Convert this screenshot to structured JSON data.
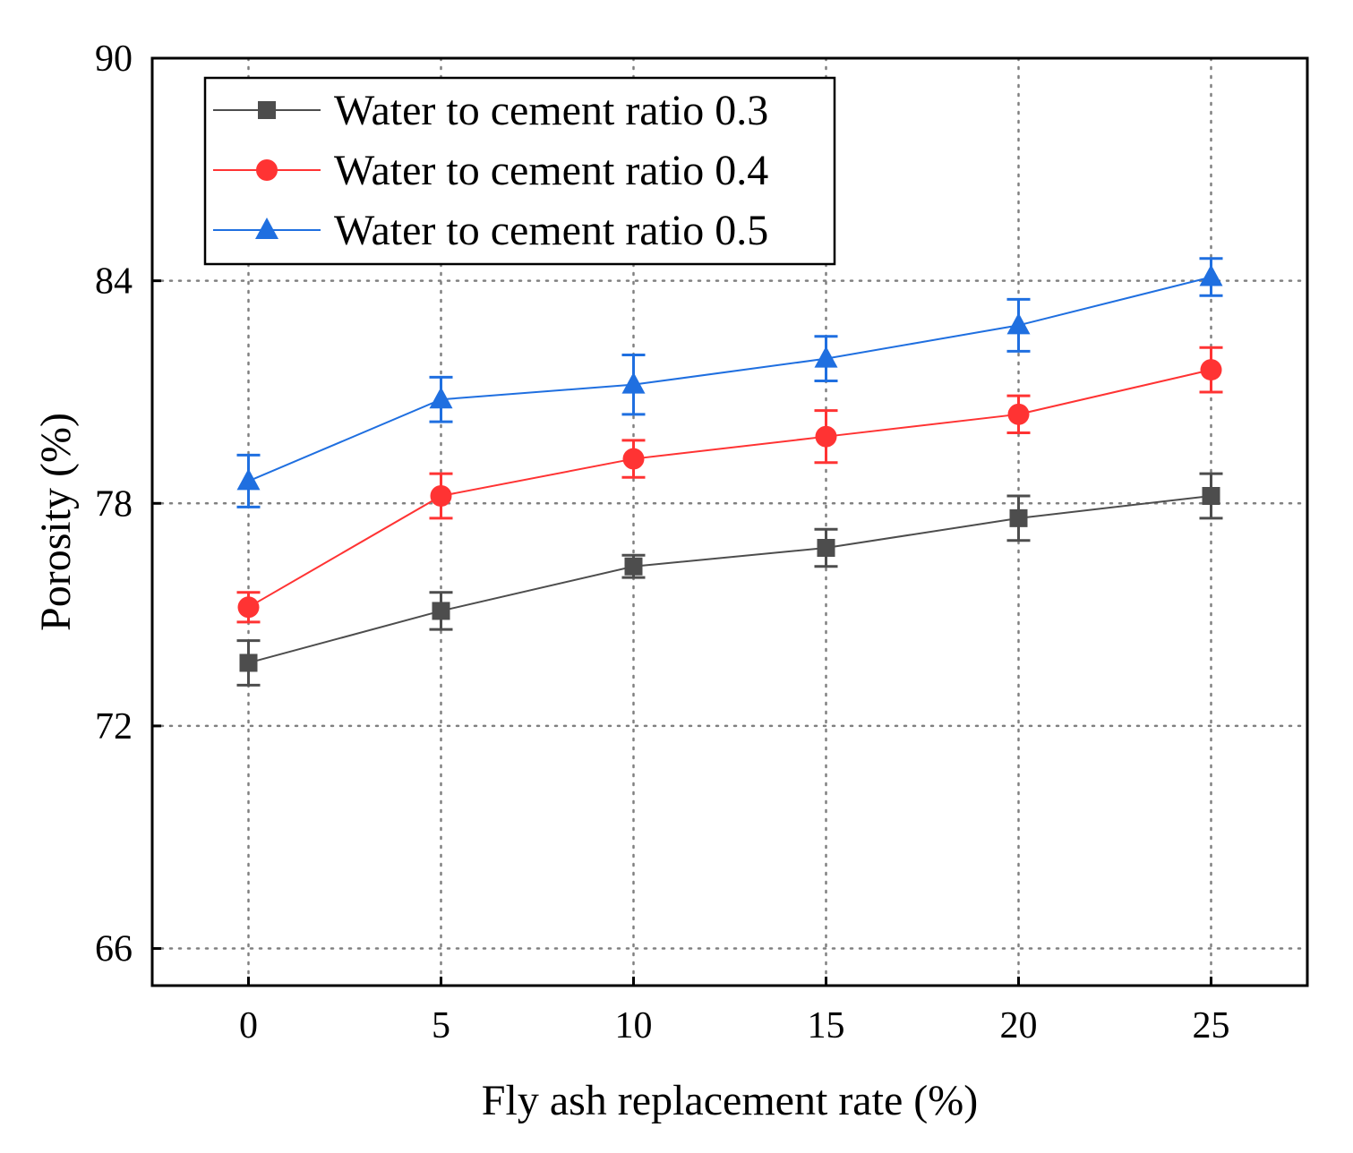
{
  "chart_data": {
    "type": "line",
    "title": "",
    "xlabel": "Fly ash replacement rate (%)",
    "ylabel": "Porosity (%)",
    "x": [
      0,
      5,
      10,
      15,
      20,
      25
    ],
    "xticks": [
      0,
      5,
      10,
      15,
      20,
      25
    ],
    "yticks": [
      66,
      72,
      78,
      84,
      90
    ],
    "xlim": [
      -2.5,
      27.5
    ],
    "ylim": [
      65,
      90
    ],
    "grid": true,
    "legend_position": "top-left",
    "series": [
      {
        "name": "Water to cement ratio 0.3",
        "color": "#4d4d4d",
        "marker": "square",
        "values": [
          73.7,
          75.1,
          76.3,
          76.8,
          77.6,
          78.2
        ],
        "errors": [
          0.6,
          0.5,
          0.3,
          0.5,
          0.6,
          0.6
        ]
      },
      {
        "name": "Water to cement ratio 0.4",
        "color": "#ff3333",
        "marker": "circle",
        "values": [
          75.2,
          78.2,
          79.2,
          79.8,
          80.4,
          81.6
        ],
        "errors": [
          0.4,
          0.6,
          0.5,
          0.7,
          0.5,
          0.6
        ]
      },
      {
        "name": "Water to cement ratio 0.5",
        "color": "#1f6fe0",
        "marker": "triangle",
        "values": [
          78.6,
          80.8,
          81.2,
          81.9,
          82.8,
          84.1
        ],
        "errors": [
          0.7,
          0.6,
          0.8,
          0.6,
          0.7,
          0.5
        ]
      }
    ]
  }
}
